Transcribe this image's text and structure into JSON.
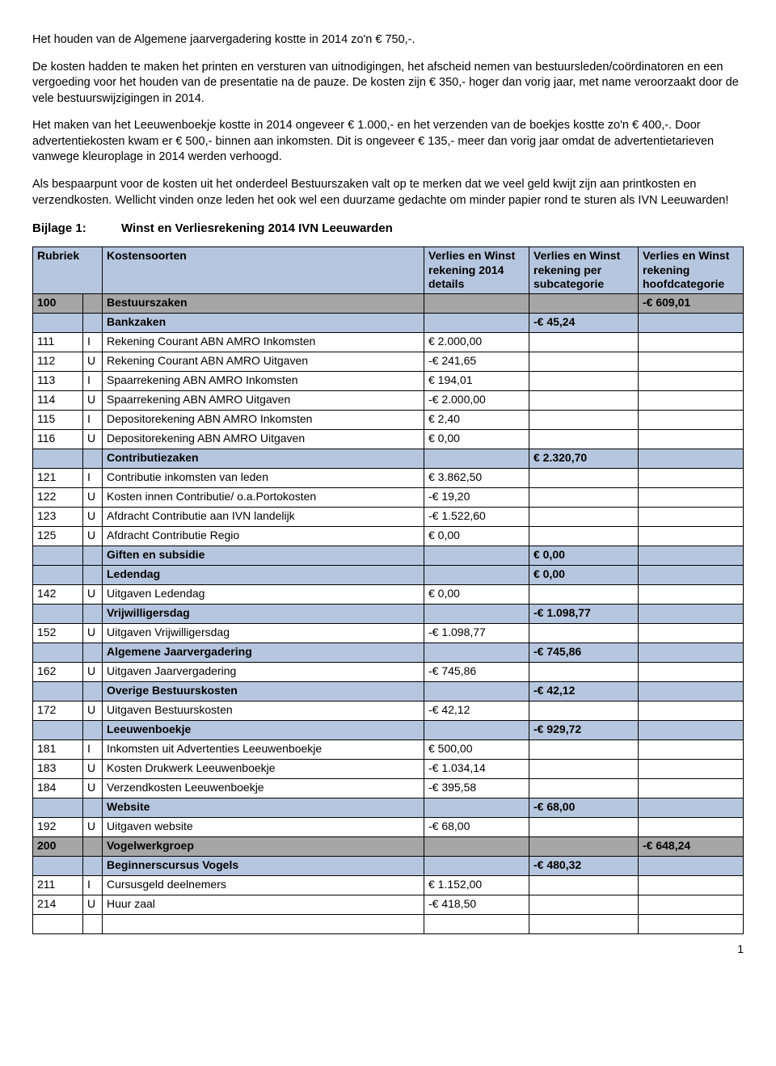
{
  "paragraphs": {
    "p1": "Het houden van de Algemene jaarvergadering kostte in 2014 zo'n € 750,-.",
    "p2": "De kosten hadden te maken het printen en versturen van uitnodigingen, het afscheid nemen van bestuursleden/coördinatoren en een vergoeding voor het houden van de presentatie na de pauze. De kosten zijn € 350,- hoger dan vorig jaar, met name veroorzaakt door de vele bestuurswijzigingen in 2014.",
    "p3": "Het maken van het Leeuwenboekje kostte in 2014 ongeveer € 1.000,- en het verzenden van de boekjes kostte zo'n € 400,-. Door advertentiekosten kwam er € 500,- binnen aan inkomsten. Dit is ongeveer € 135,- meer dan vorig jaar omdat de advertentietarieven vanwege kleuroplage in 2014 werden verhoogd.",
    "p4": "Als bespaarpunt voor de kosten uit het onderdeel Bestuurszaken valt op te merken dat we veel geld kwijt zijn aan printkosten en verzendkosten. Wellicht vinden onze leden het ook wel een duurzame gedachte om minder papier rond te sturen als IVN Leeuwarden!"
  },
  "bijlage": {
    "label": "Bijlage 1:",
    "title": "Winst en Verliesrekening 2014 IVN Leeuwarden"
  },
  "headers": {
    "rubriek": "Rubriek",
    "kosten": "Kostensoorten",
    "v1": "Verlies en Winst rekening 2014 details",
    "v2": "Verlies en Winst rekening per subcategorie",
    "v3": "Verlies en Winst rekening hoofdcategorie"
  },
  "rows": [
    {
      "cls": "main",
      "rub": "100",
      "iu": "",
      "desc": "Bestuurszaken",
      "v1": "",
      "v2": "",
      "v3": "-€ 609,01"
    },
    {
      "cls": "sub",
      "rub": "",
      "iu": "",
      "desc": "Bankzaken",
      "v1": "",
      "v2": "-€ 45,24",
      "v3": ""
    },
    {
      "cls": "",
      "rub": "111",
      "iu": "I",
      "desc": "Rekening Courant ABN AMRO Inkomsten",
      "v1": "€ 2.000,00",
      "v2": "",
      "v3": ""
    },
    {
      "cls": "",
      "rub": "112",
      "iu": "U",
      "desc": "Rekening Courant ABN AMRO Uitgaven",
      "v1": "-€ 241,65",
      "v2": "",
      "v3": ""
    },
    {
      "cls": "",
      "rub": "113",
      "iu": "I",
      "desc": "Spaarrekening ABN AMRO Inkomsten",
      "v1": "€ 194,01",
      "v2": "",
      "v3": ""
    },
    {
      "cls": "",
      "rub": "114",
      "iu": "U",
      "desc": "Spaarrekening ABN AMRO Uitgaven",
      "v1": "-€ 2.000,00",
      "v2": "",
      "v3": ""
    },
    {
      "cls": "",
      "rub": "115",
      "iu": "I",
      "desc": "Depositorekening ABN AMRO Inkomsten",
      "v1": "€ 2,40",
      "v2": "",
      "v3": ""
    },
    {
      "cls": "",
      "rub": "116",
      "iu": "U",
      "desc": "Depositorekening ABN AMRO Uitgaven",
      "v1": "€ 0,00",
      "v2": "",
      "v3": ""
    },
    {
      "cls": "sub",
      "rub": "",
      "iu": "",
      "desc": "Contributiezaken",
      "v1": "",
      "v2": "€ 2.320,70",
      "v3": ""
    },
    {
      "cls": "",
      "rub": "121",
      "iu": "I",
      "desc": "Contributie inkomsten van leden",
      "v1": "€ 3.862,50",
      "v2": "",
      "v3": ""
    },
    {
      "cls": "",
      "rub": "122",
      "iu": "U",
      "desc": "Kosten innen Contributie/ o.a.Portokosten",
      "v1": "-€ 19,20",
      "v2": "",
      "v3": ""
    },
    {
      "cls": "",
      "rub": "123",
      "iu": "U",
      "desc": "Afdracht Contributie aan IVN landelijk",
      "v1": "-€ 1.522,60",
      "v2": "",
      "v3": ""
    },
    {
      "cls": "",
      "rub": "125",
      "iu": "U",
      "desc": "Afdracht Contributie Regio",
      "v1": "€ 0,00",
      "v2": "",
      "v3": ""
    },
    {
      "cls": "sub",
      "rub": "",
      "iu": "",
      "desc": "Giften en subsidie",
      "v1": "",
      "v2": "€ 0,00",
      "v3": ""
    },
    {
      "cls": "sub",
      "rub": "",
      "iu": "",
      "desc": "Ledendag",
      "v1": "",
      "v2": "€ 0,00",
      "v3": ""
    },
    {
      "cls": "",
      "rub": "142",
      "iu": "U",
      "desc": "Uitgaven Ledendag",
      "v1": "€ 0,00",
      "v2": "",
      "v3": ""
    },
    {
      "cls": "sub",
      "rub": "",
      "iu": "",
      "desc": "Vrijwilligersdag",
      "v1": "",
      "v2": "-€ 1.098,77",
      "v3": ""
    },
    {
      "cls": "",
      "rub": "152",
      "iu": "U",
      "desc": "Uitgaven Vrijwilligersdag",
      "v1": "-€ 1.098,77",
      "v2": "",
      "v3": ""
    },
    {
      "cls": "sub",
      "rub": "",
      "iu": "",
      "desc": "Algemene Jaarvergadering",
      "v1": "",
      "v2": "-€ 745,86",
      "v3": ""
    },
    {
      "cls": "",
      "rub": "162",
      "iu": "U",
      "desc": "Uitgaven Jaarvergadering",
      "v1": "-€ 745,86",
      "v2": "",
      "v3": ""
    },
    {
      "cls": "sub",
      "rub": "",
      "iu": "",
      "desc": "Overige Bestuurskosten",
      "v1": "",
      "v2": "-€ 42,12",
      "v3": ""
    },
    {
      "cls": "",
      "rub": "172",
      "iu": "U",
      "desc": "Uitgaven Bestuurskosten",
      "v1": "-€ 42,12",
      "v2": "",
      "v3": ""
    },
    {
      "cls": "sub",
      "rub": "",
      "iu": "",
      "desc": "Leeuwenboekje",
      "v1": "",
      "v2": "-€ 929,72",
      "v3": ""
    },
    {
      "cls": "",
      "rub": "181",
      "iu": "I",
      "desc": "Inkomsten uit Advertenties Leeuwenboekje",
      "v1": "€ 500,00",
      "v2": "",
      "v3": ""
    },
    {
      "cls": "",
      "rub": "183",
      "iu": "U",
      "desc": "Kosten Drukwerk Leeuwenboekje",
      "v1": "-€ 1.034,14",
      "v2": "",
      "v3": ""
    },
    {
      "cls": "",
      "rub": "184",
      "iu": "U",
      "desc": "Verzendkosten Leeuwenboekje",
      "v1": "-€ 395,58",
      "v2": "",
      "v3": ""
    },
    {
      "cls": "sub",
      "rub": "",
      "iu": "",
      "desc": "Website",
      "v1": "",
      "v2": "-€ 68,00",
      "v3": ""
    },
    {
      "cls": "",
      "rub": "192",
      "iu": "U",
      "desc": "Uitgaven website",
      "v1": "-€ 68,00",
      "v2": "",
      "v3": ""
    },
    {
      "cls": "main",
      "rub": "200",
      "iu": "",
      "desc": "Vogelwerkgroep",
      "v1": "",
      "v2": "",
      "v3": "-€ 648,24"
    },
    {
      "cls": "sub",
      "rub": "",
      "iu": "",
      "desc": "Beginnerscursus Vogels",
      "v1": "",
      "v2": "-€ 480,32",
      "v3": ""
    },
    {
      "cls": "",
      "rub": "211",
      "iu": "I",
      "desc": "Cursusgeld deelnemers",
      "v1": "€ 1.152,00",
      "v2": "",
      "v3": ""
    },
    {
      "cls": "",
      "rub": "214",
      "iu": "U",
      "desc": "Huur zaal",
      "v1": "-€ 418,50",
      "v2": "",
      "v3": ""
    },
    {
      "cls": "",
      "rub": "",
      "iu": "",
      "desc": "",
      "v1": "",
      "v2": "",
      "v3": ""
    }
  ],
  "pageNumber": "1"
}
